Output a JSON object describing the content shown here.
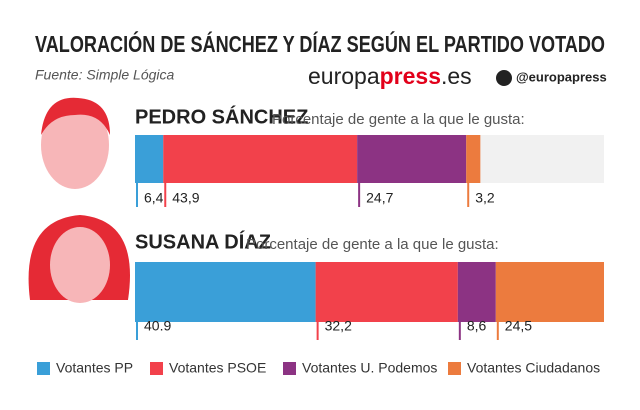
{
  "chart_data": {
    "type": "stacked-bar",
    "title": "VALORACIÓN DE SÁNCHEZ Y DÍAZ SEGÚN EL PARTIDO VOTADO",
    "source": "Fuente: Simple Lógica",
    "brand": {
      "prefix": "europa",
      "bold": "press",
      "suffix": ".es"
    },
    "twitter": "@europapress",
    "categories": [
      "PEDRO SÁNCHEZ",
      "SUSANA DÍAZ"
    ],
    "category_notes": [
      "Porcentaje de gente a la que le gusta:",
      "Porcentaje de gente a la que le gusta:"
    ],
    "series": [
      {
        "name": "Votantes PP",
        "color": "#3a9fd8",
        "values": [
          6.4,
          40.9
        ],
        "value_labels": [
          "6,4",
          "40.9"
        ]
      },
      {
        "name": "Votantes PSOE",
        "color": "#f2414b",
        "values": [
          43.9,
          32.2
        ],
        "value_labels": [
          "43,9",
          "32,2"
        ]
      },
      {
        "name": "Votantes U. Podemos",
        "color": "#8c3383",
        "values": [
          24.7,
          8.6
        ],
        "value_labels": [
          "24,7",
          "8,6"
        ]
      },
      {
        "name": "Votantes Ciudadanos",
        "color": "#ec7b3e",
        "values": [
          3.2,
          24.5
        ],
        "value_labels": [
          "3,2",
          "24,5"
        ]
      }
    ]
  }
}
